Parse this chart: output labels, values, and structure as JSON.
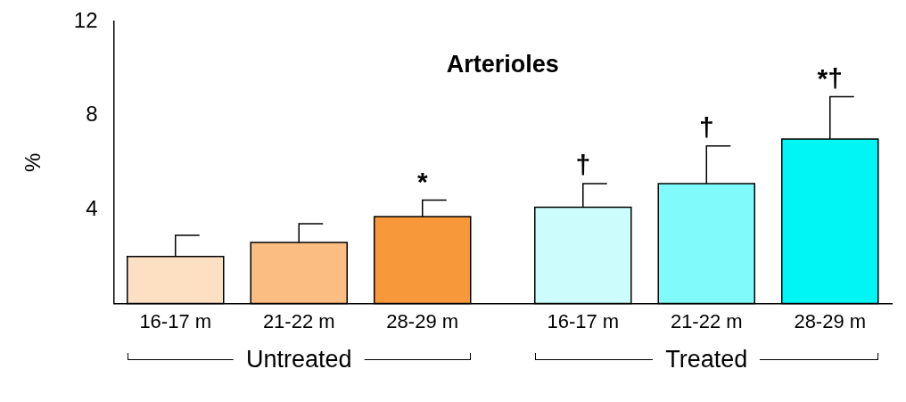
{
  "chart_data": {
    "type": "bar",
    "title": "Arterioles",
    "ylabel": "%",
    "categories": [
      "16-17 m",
      "21-22 m",
      "28-29 m",
      "16-17 m",
      "21-22 m",
      "28-29 m"
    ],
    "values": [
      2.0,
      2.6,
      3.7,
      4.1,
      5.1,
      7.0
    ],
    "colors": [
      "#fde0c2",
      "#fcbd82",
      "#f7993a",
      "#ccfcfc",
      "#80fafa",
      "#00f5f5"
    ],
    "errors": [
      [
        2.0,
        2.9
      ],
      [
        2.6,
        3.4
      ],
      [
        3.7,
        4.4
      ],
      [
        4.1,
        5.1
      ],
      [
        5.1,
        6.7
      ],
      [
        7.0,
        8.8
      ]
    ],
    "value_labels": [
      null,
      null,
      "*",
      "†",
      "†",
      "*†"
    ],
    "annotations": [
      "Untreated",
      "Treated"
    ],
    "ylim": [
      0,
      12
    ],
    "yticks": [
      4,
      8,
      12
    ],
    "grid": false,
    "legend": false
  }
}
